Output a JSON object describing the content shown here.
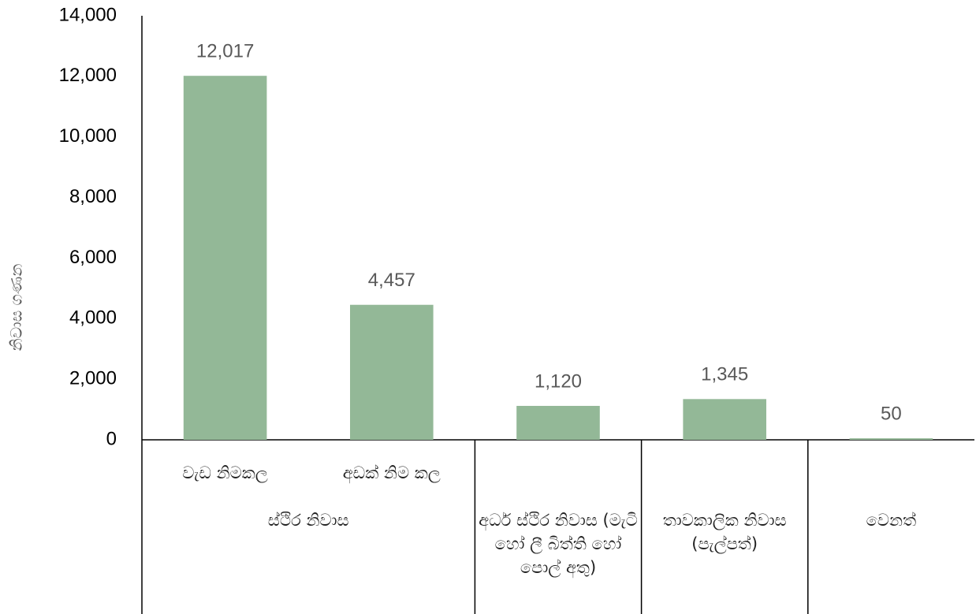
{
  "chart_data": {
    "type": "bar",
    "y_label": "නිවාස ගණන",
    "categories": [
      "වැඩ නිමකල",
      "අඩක් නිම කල",
      "අර්ධ ස්ථිර නිවාස (මැටි හෝ ලී බිත්ති හෝ පොල් අතු)",
      "තාවකාලික නිවාස (පැල්පත්)",
      "වෙනත්"
    ],
    "groups": [
      {
        "name": "ස්ථිර නිවාස",
        "size": 2
      }
    ],
    "values": [
      12017,
      4457,
      1120,
      1345,
      50
    ],
    "value_labels": [
      "12,017",
      "4,457",
      "1,120",
      "1,345",
      "50"
    ],
    "color": "#93b897",
    "ylim": [
      0,
      14000
    ],
    "yticks": [
      0,
      {
        "value": 2000,
        "label": "2,000"
      },
      {
        "value": 4000,
        "label": "4,000"
      },
      {
        "value": 6000,
        "label": "6,000"
      },
      {
        "value": 8000,
        "label": "8,000"
      },
      {
        "value": 10000,
        "label": "10,000"
      },
      {
        "value": 12000,
        "label": "12,000"
      },
      {
        "value": 14000,
        "label": "14,000"
      }
    ]
  }
}
